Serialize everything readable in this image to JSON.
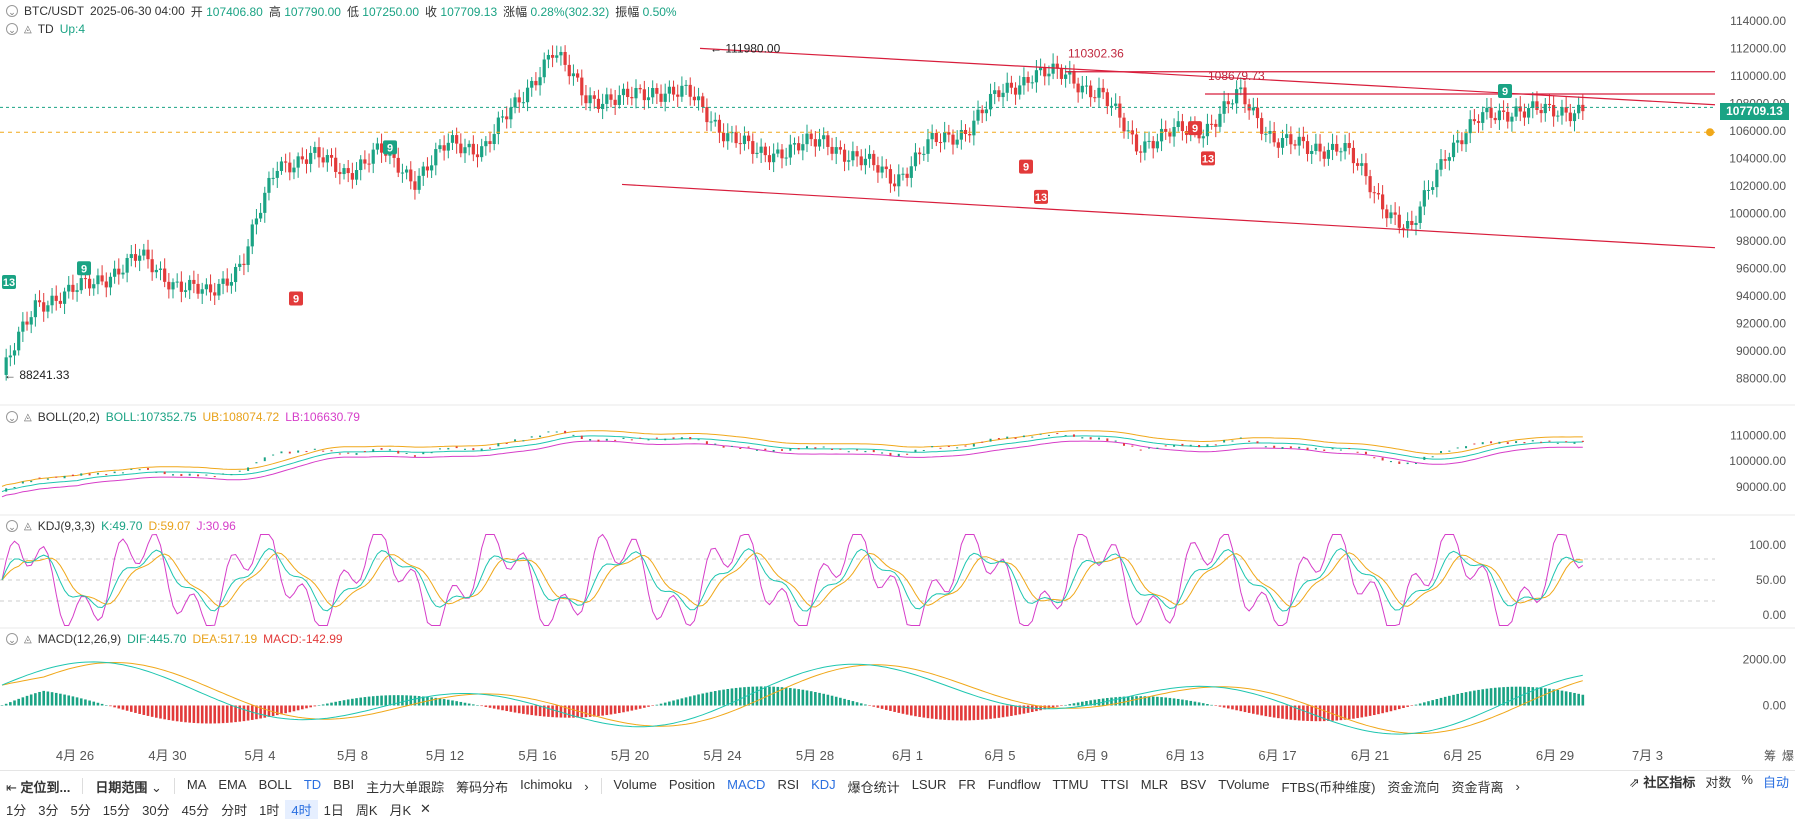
{
  "header": {
    "symbol": "BTC/USDT",
    "datetime": "2025-06-30 04:00",
    "open_label": "开",
    "open": "107406.80",
    "high_label": "高",
    "high": "107790.00",
    "low_label": "低",
    "low": "107250.00",
    "close_label": "收",
    "close": "107709.13",
    "change_label": "涨幅",
    "change": "0.28%(302.32)",
    "amp_label": "振幅",
    "amp": "0.50%"
  },
  "td": {
    "name": "TD",
    "value": "Up:4"
  },
  "boll": {
    "name": "BOLL(20,2)",
    "boll": "BOLL:107352.75",
    "ub": "UB:108074.72",
    "lb": "LB:106630.79"
  },
  "kdj": {
    "name": "KDJ(9,3,3)",
    "k": "K:49.70",
    "d": "D:59.07",
    "j": "J:30.96"
  },
  "macd": {
    "name": "MACD(12,26,9)",
    "dif": "DIF:445.70",
    "dea": "DEA:517.19",
    "macd": "MACD:-142.99"
  },
  "current_price": "107709.13",
  "annotations": {
    "high_label": "111980.00",
    "low_label": "88241.33",
    "level1": "110302.36",
    "level2": "108679.73"
  },
  "td_markers": [
    "13",
    "9",
    "9",
    "9",
    "9",
    "13",
    "9",
    "13",
    "9"
  ],
  "price_axis": [
    "114000.00",
    "112000.00",
    "110000.00",
    "108000.00",
    "106000.00",
    "104000.00",
    "102000.00",
    "100000.00",
    "98000.00",
    "96000.00",
    "94000.00",
    "92000.00",
    "90000.00",
    "88000.00"
  ],
  "boll_axis": [
    "110000.00",
    "100000.00",
    "90000.00"
  ],
  "kdj_axis": [
    "100.00",
    "50.00",
    "0.00"
  ],
  "macd_axis": [
    "2000.00",
    "0.00"
  ],
  "date_axis": [
    "4月 26",
    "4月 30",
    "5月 4",
    "5月 8",
    "5月 12",
    "5月 16",
    "5月 20",
    "5月 24",
    "5月 28",
    "6月 1",
    "6月 5",
    "6月 9",
    "6月 13",
    "6月 17",
    "6月 21",
    "6月 25",
    "6月 29",
    "7月 3"
  ],
  "axis_right_labels": [
    "筹",
    "爆"
  ],
  "toolbar": {
    "locate": "定位到...",
    "date_range": "日期范围",
    "indicators_main": [
      "MA",
      "EMA",
      "BOLL",
      "TD",
      "BBI",
      "主力大单跟踪",
      "筹码分布",
      "Ichimoku"
    ],
    "indicators_sub": [
      "Volume",
      "Position",
      "MACD",
      "RSI",
      "KDJ",
      "爆仓统计",
      "LSUR",
      "FR",
      "Fundflow",
      "TTMU",
      "TTSI",
      "MLR",
      "BSV",
      "TVolume",
      "FTBS(币种维度)",
      "资金流向",
      "资金背离"
    ],
    "community": "社区指标",
    "log": "对数",
    "percent": "%",
    "auto": "自动"
  },
  "timeframes": [
    "1分",
    "3分",
    "5分",
    "15分",
    "30分",
    "45分",
    "分时",
    "1时",
    "4时",
    "1日",
    "周K",
    "月K"
  ],
  "active_timeframe": "4时",
  "colors": {
    "up": "#1aa384",
    "down": "#e23a3a",
    "channel": "#d81e3c",
    "boll_mid": "#1ec6b0",
    "boll_ub": "#f0a81a",
    "boll_lb": "#d63ec9"
  },
  "chart_data": {
    "type": "candlestick",
    "title": "BTC/USDT",
    "x_dates": [
      "4月 26",
      "4月 30",
      "5月 4",
      "5月 8",
      "5月 12",
      "5月 16",
      "5月 20",
      "5月 24",
      "5月 28",
      "6月 1",
      "6月 5",
      "6月 9",
      "6月 13",
      "6月 17",
      "6月 21",
      "6月 25",
      "6月 29"
    ],
    "close_path": [
      88241,
      93500,
      94200,
      95400,
      96800,
      95000,
      94000,
      96500,
      103500,
      104200,
      103000,
      104500,
      102500,
      105000,
      104800,
      108000,
      111800,
      108500,
      108200,
      109000,
      108600,
      106000,
      104200,
      104800,
      105200,
      103800,
      102500,
      105000,
      106000,
      108600,
      110200,
      110000,
      108600,
      105000,
      105800,
      106200,
      108600,
      105500,
      104600,
      105000,
      101200,
      98600,
      104500,
      106800,
      107600,
      107300,
      107700
    ],
    "ylim": [
      87000,
      114500
    ]
  }
}
